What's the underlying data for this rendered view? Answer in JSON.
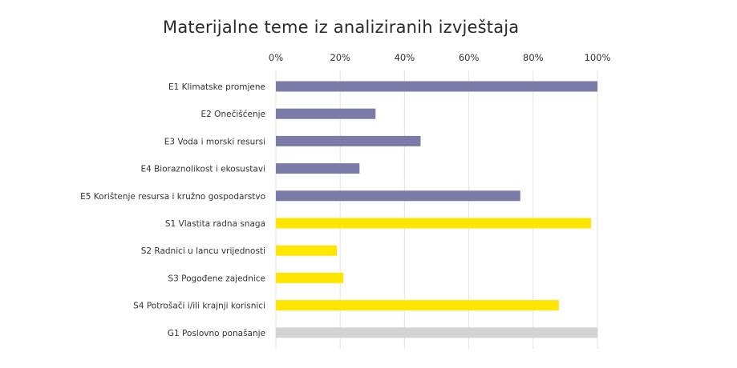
{
  "chart_data": {
    "type": "bar",
    "orientation": "horizontal",
    "title": "Materijalne teme iz analiziranih izvještaja",
    "xlabel": "",
    "ylabel": "",
    "xlim": [
      0,
      100
    ],
    "x_ticks": [
      "0%",
      "20%",
      "40%",
      "60%",
      "80%",
      "100%"
    ],
    "x_axis_position": "top",
    "grid": "vertical",
    "legend": "none",
    "categories": [
      "E1 Klimatske promjene",
      "E2 Onečišćenje",
      "E3 Voda i morski resursi",
      "E4 Bioraznolikost i ekosustavi",
      "E5 Korištenje resursa i kružno gospodarstvo",
      "S1 Vlastita radna snaga",
      "S2 Radnici u lancu vrijednosti",
      "S3 Pogođene zajednice",
      "S4 Potrošači i/ili krajnji korisnici",
      "G1 Poslovno ponašanje"
    ],
    "values": [
      100,
      31,
      45,
      26,
      76,
      98,
      19,
      21,
      88,
      100
    ],
    "colors": [
      "#7b7ba7",
      "#7b7ba7",
      "#7b7ba7",
      "#7b7ba7",
      "#7b7ba7",
      "#ffe600",
      "#ffe600",
      "#ffe600",
      "#ffe600",
      "#d3d3d3"
    ]
  }
}
